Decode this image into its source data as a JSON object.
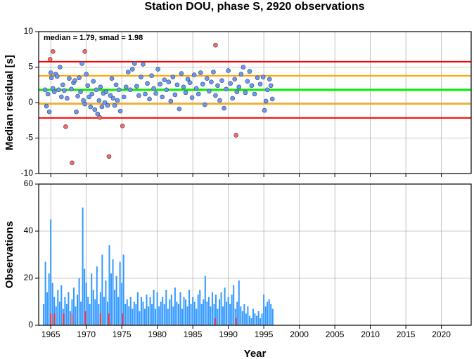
{
  "chart_data": [
    {
      "type": "scatter",
      "title": "Station DOU, phase S, 2920 observations",
      "ylabel": "Median residual [s]",
      "annotation": "median = 1.79, smad = 1.98",
      "xlim": [
        1963.3,
        2024.2
      ],
      "xticks": [
        1965,
        1970,
        1975,
        1980,
        1985,
        1990,
        1995,
        2000,
        2005,
        2010,
        2015,
        2020
      ],
      "ylim": [
        -10,
        10
      ],
      "yticks": [
        -10,
        -5,
        0,
        5,
        10
      ],
      "grid": true,
      "reference_lines": [
        {
          "value": 5.75,
          "color": "#ff0000"
        },
        {
          "value": 3.77,
          "color": "#ffa500"
        },
        {
          "value": 1.79,
          "color": "#00ee00"
        },
        {
          "value": -0.19,
          "color": "#ffa500"
        },
        {
          "value": -2.17,
          "color": "#ff0000"
        }
      ],
      "series": [
        {
          "color": "#6699ff",
          "x": [
            1964.2,
            1964.4,
            1964.6,
            1964.8,
            1965.0,
            1965.1,
            1965.3,
            1965.5,
            1965.7,
            1965.9,
            1966.1,
            1966.3,
            1966.5,
            1966.7,
            1966.9,
            1967.3,
            1967.6,
            1967.9,
            1968.2,
            1968.4,
            1968.6,
            1968.8,
            1969.0,
            1969.2,
            1969.4,
            1969.6,
            1969.8,
            1970.0,
            1970.2,
            1970.4,
            1970.6,
            1970.8,
            1971.0,
            1971.2,
            1971.4,
            1971.6,
            1971.8,
            1972.0,
            1972.2,
            1972.4,
            1972.6,
            1972.8,
            1973.0,
            1973.4,
            1973.6,
            1973.8,
            1974.0,
            1974.2,
            1974.4,
            1974.6,
            1974.8,
            1975.3,
            1975.6,
            1975.9,
            1976.2,
            1976.5,
            1976.8,
            1977.1,
            1977.4,
            1977.7,
            1978.0,
            1978.3,
            1978.6,
            1978.9,
            1979.2,
            1979.5,
            1979.8,
            1980.1,
            1980.4,
            1980.7,
            1981.0,
            1981.3,
            1981.6,
            1981.9,
            1982.2,
            1982.5,
            1982.8,
            1983.1,
            1983.4,
            1983.7,
            1984.0,
            1984.3,
            1984.6,
            1984.9,
            1985.2,
            1985.5,
            1985.8,
            1986.1,
            1986.4,
            1986.7,
            1987.0,
            1987.3,
            1987.6,
            1987.9,
            1988.2,
            1988.5,
            1988.8,
            1989.1,
            1989.4,
            1989.7,
            1990.0,
            1990.3,
            1990.6,
            1990.9,
            1991.2,
            1991.5,
            1991.8,
            1992.1,
            1992.4,
            1992.7,
            1993.0,
            1993.3,
            1993.7,
            1994.1,
            1994.5,
            1994.9,
            1995.1,
            1995.3,
            1995.5,
            1995.8,
            1996.0,
            1996.2
          ],
          "values": [
            1.8,
            -0.5,
            1.2,
            -1.3,
            4.2,
            3.5,
            2.0,
            1.5,
            4.0,
            3.7,
            1.8,
            5.0,
            0.8,
            2.5,
            1.7,
            0.6,
            3.4,
            1.9,
            2.8,
            3.1,
            -1.3,
            0.9,
            3.5,
            1.5,
            5.5,
            0.3,
            -0.2,
            4.0,
            2.4,
            0.8,
            -0.6,
            1.2,
            3.0,
            -1.0,
            1.8,
            -1.6,
            0.3,
            2.2,
            -0.6,
            1.3,
            0.0,
            1.5,
            -0.4,
            1.0,
            3.4,
            0.6,
            -0.4,
            2.5,
            0.3,
            1.8,
            -1.2,
            0.8,
            2.2,
            4.3,
            1.8,
            4.7,
            5.5,
            2.3,
            1.0,
            3.6,
            5.4,
            1.2,
            2.7,
            0.5,
            3.8,
            2.0,
            1.3,
            4.7,
            2.6,
            0.8,
            3.2,
            1.8,
            2.9,
            0.2,
            3.6,
            1.1,
            2.5,
            -0.9,
            4.1,
            2.2,
            1.4,
            3.3,
            2.8,
            0.7,
            3.9,
            2.0,
            1.2,
            4.2,
            2.6,
            -0.3,
            3.4,
            1.6,
            2.9,
            4.3,
            1.0,
            2.4,
            0.3,
            3.1,
            -0.8,
            1.9,
            4.5,
            2.7,
            0.6,
            3.3,
            1.5,
            2.2,
            4.0,
            5.0,
            1.4,
            3.0,
            4.4,
            2.4,
            1.2,
            3.5,
            2.6,
            3.6,
            -1.1,
            0.2,
            1.8,
            3.3,
            2.4,
            0.5
          ]
        },
        {
          "color": "#ff6666",
          "x": [
            1964.9,
            1965.3,
            1967.1,
            1968.0,
            1969.8,
            1971.9,
            1973.2,
            1975.1,
            1988.2,
            1991.1
          ],
          "values": [
            6.1,
            7.2,
            -3.4,
            -8.5,
            7.2,
            -2.1,
            -7.6,
            -3.3,
            8.1,
            -4.6
          ]
        }
      ]
    },
    {
      "type": "bar",
      "ylabel": "Observations",
      "xlabel": "Year",
      "xlim": [
        1963.3,
        2024.2
      ],
      "xticks": [
        1965,
        1970,
        1975,
        1980,
        1985,
        1990,
        1995,
        2000,
        2005,
        2010,
        2015,
        2020
      ],
      "ylim": [
        0,
        60
      ],
      "yticks": [
        0,
        20,
        40,
        60
      ],
      "grid": true,
      "series": [
        {
          "color": "#3399ff",
          "x": [
            1964,
            1964.25,
            1964.5,
            1964.75,
            1965,
            1965.25,
            1965.5,
            1965.75,
            1966,
            1966.25,
            1966.5,
            1966.75,
            1967,
            1967.25,
            1967.5,
            1967.75,
            1968,
            1968.25,
            1968.5,
            1968.75,
            1969,
            1969.25,
            1969.5,
            1969.75,
            1970,
            1970.25,
            1970.5,
            1970.75,
            1971,
            1971.25,
            1971.5,
            1971.75,
            1972,
            1972.25,
            1972.5,
            1972.75,
            1973,
            1973.25,
            1973.5,
            1973.75,
            1974,
            1974.25,
            1974.5,
            1974.75,
            1975,
            1975.25,
            1975.5,
            1975.75,
            1976,
            1976.25,
            1976.5,
            1976.75,
            1977,
            1977.25,
            1977.5,
            1977.75,
            1978,
            1978.25,
            1978.5,
            1978.75,
            1979,
            1979.25,
            1979.5,
            1979.75,
            1980,
            1980.25,
            1980.5,
            1980.75,
            1981,
            1981.25,
            1981.5,
            1981.75,
            1982,
            1982.25,
            1982.5,
            1982.75,
            1983,
            1983.25,
            1983.5,
            1983.75,
            1984,
            1984.25,
            1984.5,
            1984.75,
            1985,
            1985.25,
            1985.5,
            1985.75,
            1986,
            1986.25,
            1986.5,
            1986.75,
            1987,
            1987.25,
            1987.5,
            1987.75,
            1988,
            1988.25,
            1988.5,
            1988.75,
            1989,
            1989.25,
            1989.5,
            1989.75,
            1990,
            1990.25,
            1990.5,
            1990.75,
            1991,
            1991.25,
            1991.5,
            1991.75,
            1992,
            1992.25,
            1992.5,
            1992.75,
            1993,
            1993.25,
            1993.5,
            1993.75,
            1994,
            1994.25,
            1994.5,
            1994.75,
            1995,
            1995.25,
            1995.5,
            1995.75,
            1996,
            1996.25
          ],
          "values": [
            9,
            27,
            14,
            22,
            45,
            18,
            12,
            8,
            15,
            10,
            17,
            7,
            12,
            9,
            14,
            6,
            11,
            16,
            8,
            13,
            20,
            10,
            50,
            24,
            18,
            12,
            9,
            22,
            15,
            11,
            25,
            9,
            14,
            30,
            12,
            19,
            10,
            34,
            22,
            28,
            15,
            21,
            12,
            27,
            18,
            30,
            9,
            11,
            8,
            12,
            7,
            10,
            9,
            14,
            6,
            12,
            10,
            7,
            13,
            8,
            12,
            9,
            15,
            7,
            14,
            8,
            10,
            12,
            9,
            15,
            7,
            11,
            13,
            8,
            16,
            10,
            9,
            14,
            7,
            12,
            11,
            8,
            15,
            9,
            12,
            10,
            7,
            13,
            15,
            9,
            11,
            21,
            10,
            12,
            8,
            14,
            9,
            13,
            7,
            11,
            14,
            8,
            16,
            10,
            12,
            9,
            13,
            17,
            7,
            10,
            19,
            8,
            6,
            9,
            5,
            8,
            4,
            3,
            7,
            5,
            4,
            6,
            3,
            5,
            13,
            8,
            10,
            11,
            9,
            7
          ]
        },
        {
          "color": "#ff3333",
          "x": [
            1965.0,
            1965.5,
            1966.8,
            1968.0,
            1969.9,
            1972.0,
            1973.2,
            1975.1,
            1988.2,
            1991.1
          ],
          "values": [
            5,
            5,
            5,
            5,
            6,
            5,
            5,
            5,
            3,
            3
          ]
        }
      ]
    }
  ]
}
